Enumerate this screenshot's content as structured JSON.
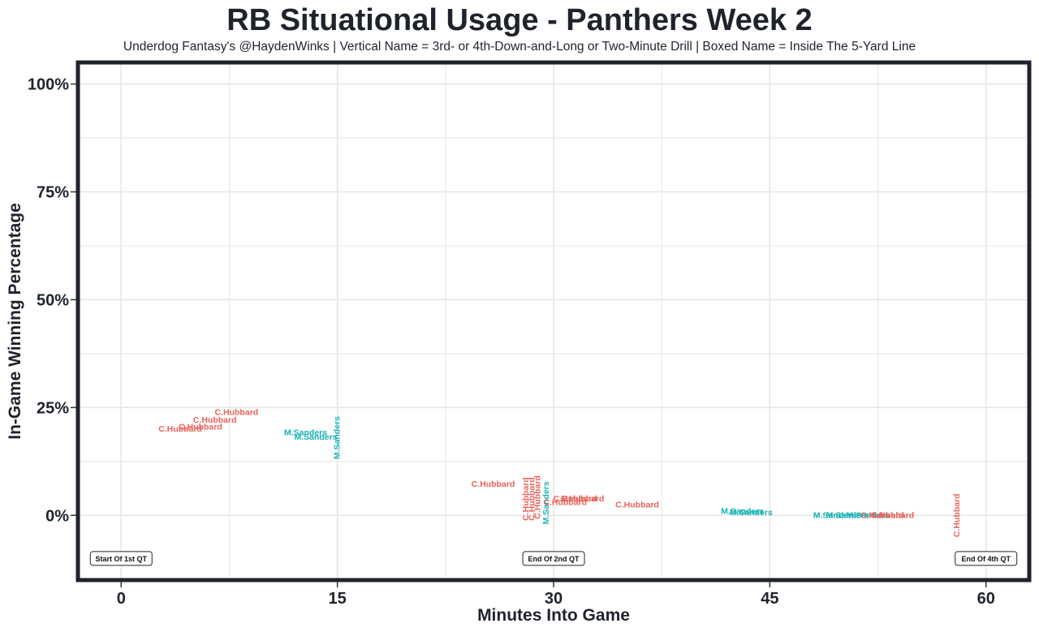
{
  "chart_data": {
    "type": "scatter",
    "title": "RB Situational Usage - Panthers Week 2",
    "subtitle": "Underdog Fantasy's @HaydenWinks | Vertical Name = 3rd- or 4th-Down-and-Long or Two-Minute Drill | Boxed Name = Inside The 5-Yard Line",
    "xlabel": "Minutes Into Game",
    "ylabel": "In-Game Winning Percentage",
    "xlim": [
      -3,
      63
    ],
    "ylim": [
      -15,
      105
    ],
    "x_ticks": [
      0,
      15,
      30,
      45,
      60
    ],
    "x_tick_labels": [
      "0",
      "15",
      "30",
      "45",
      "60"
    ],
    "y_ticks": [
      0,
      25,
      50,
      75,
      100
    ],
    "y_tick_labels": [
      "0%",
      "25%",
      "50%",
      "75%",
      "100%"
    ],
    "grid": true,
    "legend": "none",
    "colors": {
      "C.Hubbard": "#e8625b",
      "M.Sanders": "#16b2b4",
      "frame": "#1e232c",
      "grid": "#e6e6e6"
    },
    "points": [
      {
        "player": "C.Hubbard",
        "x": 8.0,
        "y": 23.8,
        "vertical": false
      },
      {
        "player": "C.Hubbard",
        "x": 6.5,
        "y": 22.1,
        "vertical": false
      },
      {
        "player": "C.Hubbard",
        "x": 5.5,
        "y": 20.5,
        "vertical": false
      },
      {
        "player": "C.Hubbard",
        "x": 4.1,
        "y": 20.0,
        "vertical": false
      },
      {
        "player": "M.Sanders",
        "x": 12.8,
        "y": 19.1,
        "vertical": false
      },
      {
        "player": "M.Sanders",
        "x": 13.5,
        "y": 18.1,
        "vertical": false
      },
      {
        "player": "M.Sanders",
        "x": 15.0,
        "y": 18.0,
        "vertical": true
      },
      {
        "player": "C.Hubbard",
        "x": 25.8,
        "y": 7.2,
        "vertical": false
      },
      {
        "player": "C.Hubbard",
        "x": 28.1,
        "y": 3.8,
        "vertical": true
      },
      {
        "player": "C.Hubbard",
        "x": 28.5,
        "y": 3.8,
        "vertical": true
      },
      {
        "player": "C.Hubbard",
        "x": 28.9,
        "y": 4.2,
        "vertical": true
      },
      {
        "player": "M.Sanders",
        "x": 29.5,
        "y": 2.9,
        "vertical": true
      },
      {
        "player": "C.Hubbard",
        "x": 30.8,
        "y": 3.0,
        "vertical": false
      },
      {
        "player": "C.Hubbard",
        "x": 31.5,
        "y": 3.8,
        "vertical": false
      },
      {
        "player": "C.Hubbard",
        "x": 32.0,
        "y": 3.8,
        "vertical": false
      },
      {
        "player": "C.Hubbard",
        "x": 35.8,
        "y": 2.4,
        "vertical": false
      },
      {
        "player": "M.Sanders",
        "x": 43.1,
        "y": 0.9,
        "vertical": false
      },
      {
        "player": "M.Sanders",
        "x": 43.7,
        "y": 0.6,
        "vertical": false
      },
      {
        "player": "M.Sanders",
        "x": 49.5,
        "y": 0.0,
        "vertical": false
      },
      {
        "player": "M.Sanders",
        "x": 50.4,
        "y": 0.0,
        "vertical": false
      },
      {
        "player": "M.Sanders",
        "x": 51.8,
        "y": 0.0,
        "vertical": false
      },
      {
        "player": "C.Hubbard",
        "x": 52.8,
        "y": 0.0,
        "vertical": false
      },
      {
        "player": "C.Hubbard",
        "x": 53.5,
        "y": 0.0,
        "vertical": false
      },
      {
        "player": "C.Hubbard",
        "x": 58.0,
        "y": 0.0,
        "vertical": true
      }
    ],
    "annotations": [
      {
        "text": "Start Of 1st QT",
        "x": 0,
        "y": -10
      },
      {
        "text": "End Of 2nd QT",
        "x": 30,
        "y": -10
      },
      {
        "text": "End Of 4th QT",
        "x": 60,
        "y": -10
      }
    ]
  }
}
